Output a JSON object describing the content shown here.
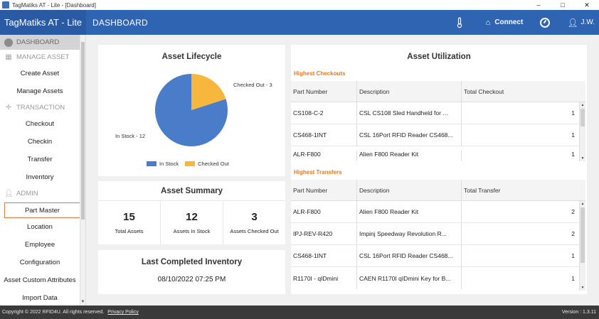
{
  "window": {
    "title": "TagMatiks AT - Lite - [Dashboard]",
    "minimize": "–",
    "maximize": "□",
    "close": "✕"
  },
  "header": {
    "brand": "TagMatiks AT - Lite",
    "page_title": "DASHBOARD",
    "connect_label": "Connect",
    "user_label": "J.W."
  },
  "sidebar": {
    "dashboard": "DASHBOARD",
    "manage_asset": "MANAGE ASSET",
    "create_asset": "Create Asset",
    "manage_assets": "Manage Assets",
    "transaction": "TRANSACTION",
    "checkout": "Checkout",
    "checkin": "Checkin",
    "transfer": "Transfer",
    "inventory": "Inventory",
    "admin": "ADMIN",
    "part_master": "Part Master",
    "location": "Location",
    "employee": "Employee",
    "configuration": "Configuration",
    "asset_custom_attributes": "Asset Custom Attributes",
    "import_data": "Import Data"
  },
  "lifecycle": {
    "title": "Asset Lifecycle",
    "label_checked_out": "Checked Out - 3",
    "label_in_stock": "In Stock - 12",
    "legend_in_stock": "In Stock",
    "legend_checked_out": "Checked Out",
    "colors": {
      "in_stock": "#4a7dc9",
      "checked_out": "#f6b73c"
    }
  },
  "chart_data": {
    "type": "pie",
    "title": "Asset Lifecycle",
    "categories": [
      "In Stock",
      "Checked Out"
    ],
    "values": [
      12,
      3
    ],
    "legend": "bottom"
  },
  "summary": {
    "title": "Asset Summary",
    "total_assets_value": "15",
    "total_assets_label": "Total Assets",
    "in_stock_value": "12",
    "in_stock_label": "Assets In Stock",
    "checked_out_value": "3",
    "checked_out_label": "Assets Checked Out"
  },
  "last_inventory": {
    "title": "Last Completed Inventory",
    "date": "08/10/2022 07:25 PM"
  },
  "utilization": {
    "title": "Asset Utilization",
    "checkouts_title": "Highest Checkouts",
    "checkouts_headers": [
      "Part Number",
      "Description",
      "Total Checkout"
    ],
    "checkouts_rows": [
      [
        "CS108-C-2",
        "CSL CS108 Sled Handheld for ...",
        "1"
      ],
      [
        "CS468-1INT",
        "CSL 16Port RFID Reader CS468...",
        "1"
      ],
      [
        "ALR-F800",
        "Alien F800 Reader Kit",
        "1"
      ]
    ],
    "transfers_title": "Highest Transfers",
    "transfers_headers": [
      "Part Number",
      "Description",
      "Total Transfer"
    ],
    "transfers_rows": [
      [
        "ALR-F800",
        "Alien F800 Reader Kit",
        "2"
      ],
      [
        "IPJ-REV-R420",
        "Impinj Speedway Revolution R...",
        "2"
      ],
      [
        "CS468-1INT",
        "CSL 16Port RFID Reader CS468...",
        "1"
      ],
      [
        "R1170I - qIDmini",
        "CAEN R1170I qIDmini Key for B...",
        "1"
      ]
    ]
  },
  "footer": {
    "copyright": "Copyright © 2022 RFID4U. All rights reserved.",
    "privacy": "Privacy Policy",
    "version": "Version : 1.3.11"
  }
}
